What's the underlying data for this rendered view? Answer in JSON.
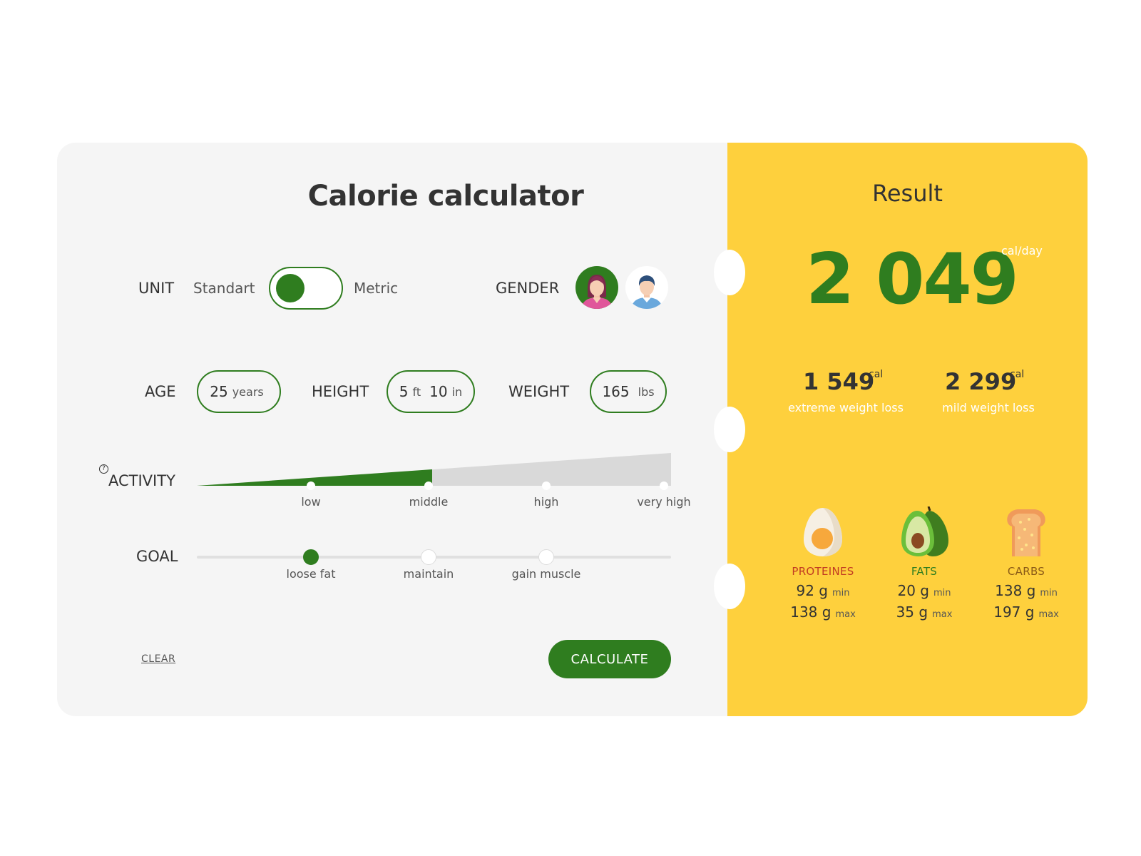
{
  "calculator": {
    "title": "Calorie calculator",
    "unit": {
      "label": "UNIT",
      "option_left": "Standart",
      "option_right": "Metric"
    },
    "gender": {
      "label": "GENDER"
    },
    "age": {
      "label": "AGE",
      "value": "25",
      "unit": "years"
    },
    "height": {
      "label": "HEIGHT",
      "feet": "5",
      "feet_unit": "ft",
      "inches": "10",
      "inches_unit": "in"
    },
    "weight": {
      "label": "WEIGHT",
      "value": "165",
      "unit": "lbs"
    },
    "activity": {
      "label": "ACTIVITY",
      "help_icon": "?",
      "levels": [
        "low",
        "middle",
        "high",
        "very high"
      ],
      "selected_level": "middle"
    },
    "goal": {
      "label": "GOAL",
      "options": [
        "loose fat",
        "maintain",
        "gain muscle"
      ],
      "selected": "loose fat"
    },
    "clear_label": "CLEAR",
    "calculate_label": "CALCULATE"
  },
  "result": {
    "title": "Result",
    "calories": "2 049",
    "calories_unit": "cal/day",
    "extreme": {
      "value": "1 549",
      "unit": "cal",
      "label": "extreme weight loss"
    },
    "mild": {
      "value": "2 299",
      "unit": "cal",
      "label": "mild weight loss"
    },
    "macros": [
      {
        "name": "PROTEINES",
        "color": "#c23b22",
        "icon": "egg-icon",
        "min": "92 g",
        "min_label": "min",
        "max": "138 g",
        "max_label": "max"
      },
      {
        "name": "FATS",
        "color": "#2f7d1f",
        "icon": "avocado-icon",
        "min": "20 g",
        "min_label": "min",
        "max": "35 g",
        "max_label": "max"
      },
      {
        "name": "CARBS",
        "color": "#8a5a17",
        "icon": "bread-icon",
        "min": "138 g",
        "min_label": "min",
        "max": "197 g",
        "max_label": "max"
      }
    ]
  },
  "colors": {
    "accent": "#2f7d1f",
    "result_bg": "#fed03d",
    "panel_bg": "#f5f5f5"
  }
}
